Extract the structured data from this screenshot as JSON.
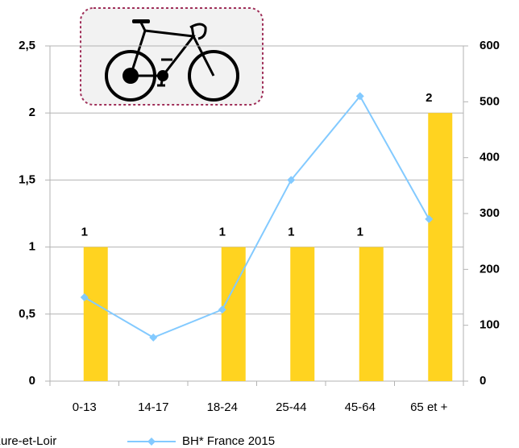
{
  "chart_data": {
    "type": "bar_line",
    "categories": [
      "0-13",
      "14-17",
      "18-24",
      "25-44",
      "45-64",
      "65 et +"
    ],
    "series": [
      {
        "name": "Eure-et-Loir",
        "type": "bar",
        "color": "#ffd320",
        "values": [
          1,
          null,
          1,
          1,
          1,
          2
        ]
      },
      {
        "name": "BH* France 2015",
        "type": "line",
        "axis": "y2",
        "color": "#83caff",
        "values": [
          150,
          78,
          128,
          360,
          510,
          290
        ]
      }
    ],
    "ylim": [
      0,
      2.5
    ],
    "yticks": [
      0,
      {
        "value": 0.5,
        "label": "0,5"
      },
      1,
      {
        "value": 1.5,
        "label": "1,5"
      },
      2,
      {
        "value": 2.5,
        "label": "2,5"
      }
    ],
    "y2lim": [
      0,
      600
    ],
    "y2ticks": [
      0,
      100,
      200,
      300,
      400,
      500,
      600
    ],
    "y2_tick_color": "#1f6fc5",
    "grid": true
  }
}
